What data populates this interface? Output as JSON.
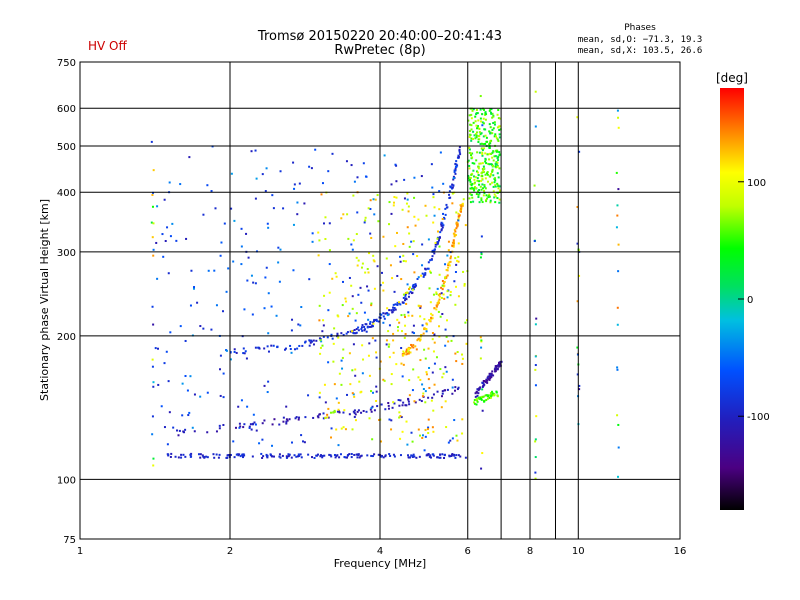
{
  "header": {
    "title": "Tromsø 20150220 20:40:00–20:41:43",
    "subtitle": "RwPretec (8p)",
    "status": "HV Off",
    "status_color": "#cc0000",
    "phase_title": "Phases",
    "phase_o": "mean, sd,O: −71.3, 19.3",
    "phase_x": "mean, sd,X: 103.5, 26.6"
  },
  "colorbar": {
    "unit_label": "[deg]",
    "range": [
      -180,
      180
    ],
    "ticks": [
      {
        "value": 100,
        "label": "100"
      },
      {
        "value": 0,
        "label": "0"
      },
      {
        "value": -100,
        "label": "-100"
      }
    ]
  },
  "chart_data": {
    "type": "scatter",
    "title": "Tromsø 20150220 20:40:00–20:41:43",
    "subtitle": "RwPretec (8p)",
    "xlabel": "Frequency [MHz]",
    "ylabel": "Stationary phase Virtual Height [km]",
    "x_scale": "log",
    "y_scale": "log",
    "xlim": [
      1,
      16
    ],
    "ylim": [
      75,
      750
    ],
    "x_ticks": [
      {
        "value": 1,
        "label": "1"
      },
      {
        "value": 2,
        "label": "2"
      },
      {
        "value": 4,
        "label": "4"
      },
      {
        "value": 6,
        "label": "6"
      },
      {
        "value": 8,
        "label": "8"
      },
      {
        "value": 10,
        "label": "10"
      },
      {
        "value": 16,
        "label": "16"
      }
    ],
    "y_ticks": [
      {
        "value": 75,
        "label": "75"
      },
      {
        "value": 100,
        "label": "100"
      },
      {
        "value": 200,
        "label": "200"
      },
      {
        "value": 300,
        "label": "300"
      },
      {
        "value": 400,
        "label": "400"
      },
      {
        "value": 500,
        "label": "500"
      },
      {
        "value": 600,
        "label": "600"
      },
      {
        "value": 750,
        "label": "750"
      }
    ],
    "x_gridlines": [
      2,
      4,
      6,
      8,
      10
    ],
    "x_gridlines_extra": [
      7,
      9
    ],
    "y_gridlines": [
      100,
      200,
      300,
      400,
      500,
      600
    ],
    "grid": true,
    "color_scale": "phase in degrees, rainbow from -180 (black/purple) through blue, cyan, green, yellow to red (+180)",
    "traces": [
      {
        "name": "",
        "description": "E-layer low trace",
        "x_range": [
          1.5,
          6.0
        ],
        "y": [
          112,
          112
        ],
        "phase": -95
      },
      {
        "name": "",
        "description": "mid trace",
        "points": [
          [
            1.55,
            125
          ],
          [
            2.5,
            132
          ],
          [
            3.5,
            138
          ],
          [
            4.5,
            145
          ],
          [
            5.8,
            155
          ]
        ],
        "phase": -110
      },
      {
        "name": "",
        "description": "O-mode F trace",
        "points": [
          [
            2.0,
            185
          ],
          [
            2.7,
            190
          ],
          [
            3.3,
            200
          ],
          [
            3.8,
            210
          ],
          [
            4.2,
            225
          ],
          [
            4.6,
            245
          ],
          [
            5.0,
            280
          ],
          [
            5.3,
            330
          ],
          [
            5.6,
            420
          ],
          [
            5.8,
            500
          ]
        ],
        "phase": -90
      },
      {
        "name": "",
        "description": "X-mode F trace",
        "points": [
          [
            4.4,
            180
          ],
          [
            4.8,
            195
          ],
          [
            5.2,
            230
          ],
          [
            5.5,
            280
          ],
          [
            5.7,
            340
          ],
          [
            5.85,
            380
          ]
        ],
        "phase": 130
      },
      {
        "name": "",
        "description": "upper cusp cluster",
        "points": [
          [
            6.2,
            150
          ],
          [
            6.5,
            160
          ],
          [
            6.8,
            170
          ],
          [
            7.0,
            175
          ]
        ],
        "phase": -120
      },
      {
        "name": "",
        "description": "green low segment",
        "points": [
          [
            6.2,
            145
          ],
          [
            6.5,
            148
          ],
          [
            6.9,
            152
          ]
        ],
        "phase": 60
      }
    ],
    "scatter_regions": [
      {
        "x_range": [
          1.4,
          5.8
        ],
        "y_range": [
          115,
          500
        ],
        "phase_mean": -71.3
      },
      {
        "x_range": [
          3.0,
          6.0
        ],
        "y_range": [
          120,
          400
        ],
        "phase_mean": 103.5
      },
      {
        "x_range": [
          6.0,
          7.0
        ],
        "y_range": [
          380,
          600
        ],
        "phase_mean": 50
      }
    ]
  },
  "ui": {
    "colorbar_label": "[deg]"
  }
}
